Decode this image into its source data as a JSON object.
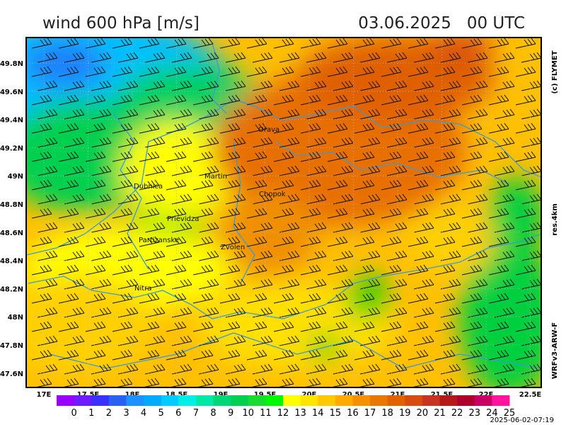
{
  "header": {
    "title": "wind 600 hPa [m/s]",
    "valid": "03.06.2025   00 UTC"
  },
  "side_labels": {
    "credit": "(c) FLYMET",
    "resolution": "res.4km",
    "model": "WRFv3-ARW-F"
  },
  "map": {
    "lat_labels": [
      "49.8N",
      "49.6N",
      "49.4N",
      "49.2N",
      "49N",
      "48.8N",
      "48.6N",
      "48.4N",
      "48.2N",
      "48N",
      "47.8N",
      "47.6N"
    ],
    "lon_labels": [
      "17E",
      "17.5E",
      "18E",
      "18.5E",
      "19E",
      "19.5E",
      "20E",
      "20.5E",
      "21E",
      "21.5E",
      "22E",
      "22.5E"
    ],
    "places": [
      "Orava",
      "Martin",
      "Dubnica",
      "Chopok",
      "Prievidza",
      "Partizanske",
      "Zvolen",
      "Nitra"
    ]
  },
  "colorbar": {
    "labels": [
      0,
      1,
      2,
      3,
      4,
      5,
      6,
      7,
      8,
      9,
      10,
      11,
      12,
      13,
      14,
      15,
      16,
      17,
      18,
      19,
      20,
      21,
      22,
      23,
      24,
      25
    ],
    "colors": [
      "#9a00ff",
      "#6e1cff",
      "#3a30ff",
      "#2862f0",
      "#1e90ff",
      "#00aaff",
      "#00ccff",
      "#00eee8",
      "#00e8a8",
      "#00d878",
      "#00d050",
      "#18dc30",
      "#00f800",
      "#ffff00",
      "#ffe400",
      "#ffc800",
      "#ffaa00",
      "#f59000",
      "#e87800",
      "#e06200",
      "#d84c10",
      "#c83420",
      "#b41818",
      "#b0002e",
      "#c80064",
      "#ff14a0"
    ]
  },
  "footer": {
    "issued": "2025-06-02-07:19"
  }
}
